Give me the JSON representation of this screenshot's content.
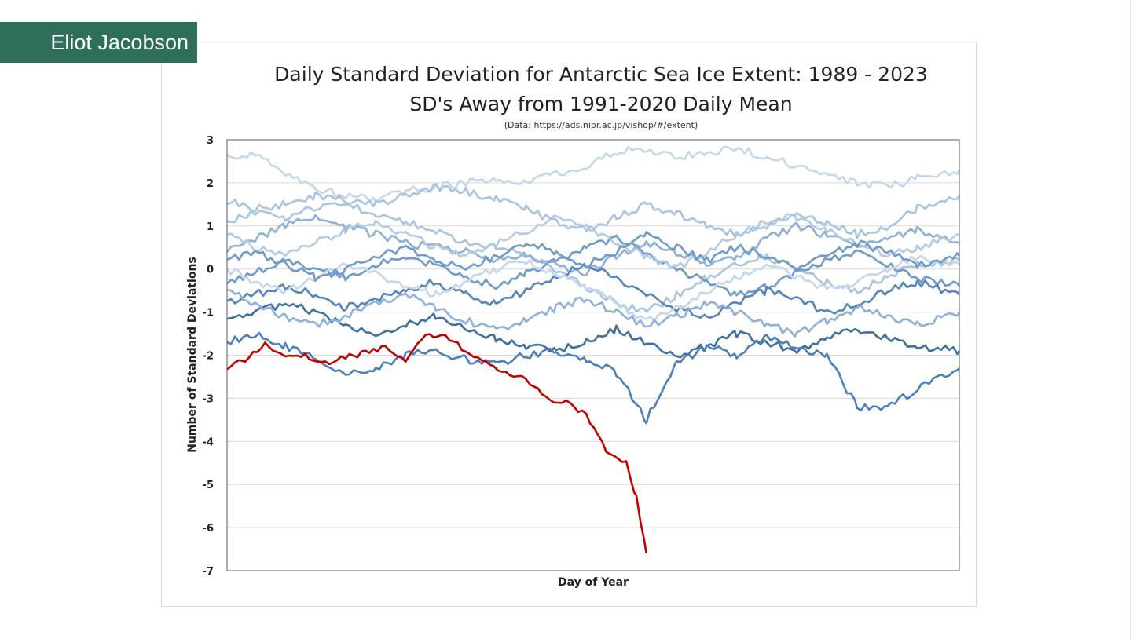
{
  "author": "Eliot Jacobson",
  "chart_data": {
    "type": "line",
    "title": "Daily Standard Deviation for Antarctic Sea Ice Extent: 1989 - 2023",
    "subtitle": "SD's Away from 1991-2020 Daily Mean",
    "source": "(Data: https://ads.nipr.ac.jp/vishop/#/extent)",
    "xlabel": "Day of Year",
    "ylabel": "Number of Standard Deviations",
    "ylim": [
      -7,
      3
    ],
    "xlim": [
      1,
      366
    ],
    "y_ticks": [
      "3",
      "2",
      "1",
      "0",
      "-1",
      "-2",
      "-3",
      "-4",
      "-5",
      "-6",
      "-7"
    ],
    "grid": "horizontal",
    "legend": "none",
    "historical_colors": [
      "#c6d7ec",
      "#a9c4e2",
      "#8fb0d8",
      "#6f9bcb",
      "#5685bb",
      "#3f6f9f",
      "#4d7fb8",
      "#b4cbe6"
    ],
    "highlight_color": "#c00000",
    "historical_series": [
      {
        "x": [
          1,
          15,
          30,
          45,
          60,
          75,
          90,
          105,
          120,
          135,
          150,
          165,
          180,
          195,
          210,
          225,
          240,
          255,
          270,
          285,
          300,
          315,
          330,
          345,
          366
        ],
        "values": [
          2.6,
          2.7,
          2.2,
          1.9,
          1.7,
          1.6,
          1.8,
          1.9,
          2.0,
          2.1,
          2.0,
          2.2,
          2.4,
          2.7,
          2.8,
          2.6,
          2.7,
          2.8,
          2.6,
          2.4,
          2.2,
          2.0,
          1.9,
          2.1,
          2.3
        ]
      },
      {
        "x": [
          1,
          15,
          30,
          45,
          60,
          75,
          90,
          105,
          120,
          135,
          150,
          165,
          180,
          195,
          210,
          225,
          240,
          255,
          270,
          285,
          300,
          315,
          330,
          345,
          366
        ],
        "values": [
          1.1,
          1.3,
          1.2,
          1.4,
          1.5,
          1.3,
          1.1,
          0.9,
          0.6,
          0.5,
          0.3,
          0.0,
          -0.4,
          -0.8,
          -1.0,
          -0.6,
          -0.2,
          0.1,
          0.3,
          0.0,
          -0.3,
          -0.5,
          -0.2,
          0.1,
          0.2
        ]
      },
      {
        "x": [
          1,
          15,
          30,
          45,
          60,
          75,
          90,
          105,
          120,
          135,
          150,
          165,
          180,
          195,
          210,
          225,
          240,
          255,
          270,
          285,
          300,
          315,
          330,
          345,
          366
        ],
        "values": [
          0.4,
          0.7,
          1.0,
          1.2,
          1.0,
          0.8,
          0.6,
          0.5,
          0.4,
          0.2,
          0.3,
          0.1,
          -0.1,
          0.3,
          0.6,
          0.4,
          0.1,
          0.3,
          0.7,
          1.0,
          0.8,
          0.5,
          0.7,
          0.9,
          0.6
        ]
      },
      {
        "x": [
          1,
          15,
          30,
          45,
          60,
          75,
          90,
          105,
          120,
          135,
          150,
          165,
          180,
          195,
          210,
          225,
          240,
          255,
          270,
          285,
          300,
          315,
          330,
          345,
          366
        ],
        "values": [
          -0.3,
          -0.1,
          0.2,
          0.0,
          -0.2,
          0.1,
          0.3,
          0.1,
          -0.2,
          -0.4,
          -0.1,
          0.2,
          0.5,
          0.7,
          0.4,
          0.0,
          -0.3,
          -0.6,
          -0.4,
          -0.1,
          0.2,
          0.4,
          0.1,
          -0.2,
          -0.4
        ]
      },
      {
        "x": [
          1,
          15,
          30,
          45,
          60,
          75,
          90,
          105,
          120,
          135,
          150,
          165,
          180,
          195,
          210,
          225,
          240,
          255,
          270,
          285,
          300,
          315,
          330,
          345,
          366
        ],
        "values": [
          -0.8,
          -0.6,
          -0.4,
          -0.6,
          -0.9,
          -0.7,
          -0.5,
          -0.3,
          -0.6,
          -0.8,
          -0.5,
          -0.2,
          0.1,
          -0.2,
          -0.6,
          -0.9,
          -1.1,
          -0.8,
          -0.5,
          -0.7,
          -1.0,
          -0.8,
          -0.5,
          -0.3,
          -0.6
        ]
      },
      {
        "x": [
          1,
          15,
          30,
          45,
          60,
          75,
          90,
          105,
          120,
          135,
          150,
          165,
          180,
          195,
          210,
          225,
          240,
          255,
          270,
          285,
          300,
          315,
          330,
          345,
          366
        ],
        "values": [
          -1.2,
          -1.0,
          -0.8,
          -1.0,
          -1.3,
          -1.5,
          -1.3,
          -1.1,
          -1.4,
          -1.6,
          -1.8,
          -1.9,
          -1.7,
          -1.4,
          -1.7,
          -2.0,
          -1.8,
          -1.5,
          -1.7,
          -1.9,
          -1.6,
          -1.4,
          -1.6,
          -1.8,
          -1.9
        ]
      },
      {
        "x": [
          1,
          15,
          30,
          45,
          60,
          75,
          90,
          105,
          120,
          135,
          150,
          165,
          180,
          195,
          210,
          225,
          240,
          255,
          270,
          285,
          300,
          315,
          330,
          345,
          366
        ],
        "values": [
          -1.7,
          -1.5,
          -1.8,
          -2.1,
          -2.4,
          -2.3,
          -2.0,
          -1.9,
          -2.1,
          -2.2,
          -2.0,
          -1.9,
          -2.1,
          -2.4,
          -3.5,
          -2.2,
          -1.8,
          -2.0,
          -1.6,
          -1.8,
          -2.0,
          -3.2,
          -3.2,
          -2.8,
          -2.3
        ]
      },
      {
        "x": [
          1,
          15,
          30,
          45,
          60,
          75,
          90,
          105,
          120,
          135,
          150,
          165,
          180,
          195,
          210,
          225,
          240,
          255,
          270,
          285,
          300,
          315,
          330,
          345,
          366
        ],
        "values": [
          0.8,
          0.5,
          0.3,
          0.6,
          0.9,
          1.1,
          0.8,
          0.5,
          0.3,
          0.6,
          0.9,
          1.2,
          1.0,
          0.6,
          0.3,
          0.0,
          0.4,
          0.8,
          1.1,
          1.2,
          0.9,
          0.6,
          0.3,
          0.5,
          0.8
        ]
      },
      {
        "x": [
          1,
          15,
          30,
          45,
          60,
          75,
          90,
          105,
          120,
          135,
          150,
          165,
          180,
          195,
          210,
          225,
          240,
          255,
          270,
          285,
          300,
          315,
          330,
          345,
          366
        ],
        "values": [
          0.0,
          -0.3,
          -0.5,
          -0.2,
          0.1,
          -0.1,
          -0.4,
          -0.6,
          -0.3,
          0.0,
          0.2,
          -0.1,
          -0.4,
          -0.8,
          -1.2,
          -0.9,
          -0.5,
          -0.2,
          0.1,
          -0.2,
          -0.5,
          -0.3,
          0.0,
          0.3,
          0.1
        ]
      },
      {
        "x": [
          1,
          15,
          30,
          45,
          60,
          75,
          90,
          105,
          120,
          135,
          150,
          165,
          180,
          195,
          210,
          225,
          240,
          255,
          270,
          285,
          300,
          315,
          330,
          345,
          366
        ],
        "values": [
          1.6,
          1.4,
          1.5,
          1.7,
          1.6,
          1.5,
          1.7,
          1.9,
          1.8,
          1.6,
          1.4,
          1.1,
          0.9,
          1.2,
          1.5,
          1.3,
          1.0,
          0.8,
          1.0,
          1.3,
          1.1,
          0.8,
          1.0,
          1.4,
          1.7
        ]
      },
      {
        "x": [
          1,
          15,
          30,
          45,
          60,
          75,
          90,
          105,
          120,
          135,
          150,
          165,
          180,
          195,
          210,
          225,
          240,
          255,
          270,
          285,
          300,
          315,
          330,
          345,
          366
        ],
        "values": [
          -0.5,
          -0.8,
          -1.1,
          -1.3,
          -1.1,
          -0.8,
          -0.6,
          -0.9,
          -1.2,
          -1.4,
          -1.2,
          -0.9,
          -0.7,
          -1.0,
          -1.3,
          -1.1,
          -0.8,
          -1.0,
          -1.3,
          -1.5,
          -1.2,
          -0.9,
          -1.1,
          -1.3,
          -1.0
        ]
      },
      {
        "x": [
          1,
          15,
          30,
          45,
          60,
          75,
          90,
          105,
          120,
          135,
          150,
          165,
          180,
          195,
          210,
          225,
          240,
          255,
          270,
          285,
          300,
          315,
          330,
          345,
          366
        ],
        "values": [
          0.2,
          0.4,
          0.1,
          -0.2,
          0.0,
          0.3,
          0.5,
          0.2,
          0.0,
          0.3,
          0.6,
          0.4,
          0.1,
          0.4,
          0.8,
          0.5,
          0.2,
          0.5,
          0.3,
          0.0,
          0.3,
          0.6,
          0.4,
          0.1,
          0.3
        ]
      }
    ],
    "series": [
      {
        "x": [
          1,
          10,
          20,
          30,
          40,
          50,
          60,
          70,
          80,
          90,
          100,
          110,
          120,
          130,
          140,
          150,
          160,
          170,
          180,
          190,
          200,
          205,
          210
        ],
        "values": [
          -2.3,
          -2.1,
          -1.75,
          -2.0,
          -2.0,
          -2.2,
          -2.05,
          -1.95,
          -1.8,
          -2.1,
          -1.55,
          -1.55,
          -1.9,
          -2.15,
          -2.4,
          -2.55,
          -3.0,
          -3.1,
          -3.4,
          -4.2,
          -4.5,
          -5.3,
          -6.6
        ]
      }
    ]
  }
}
